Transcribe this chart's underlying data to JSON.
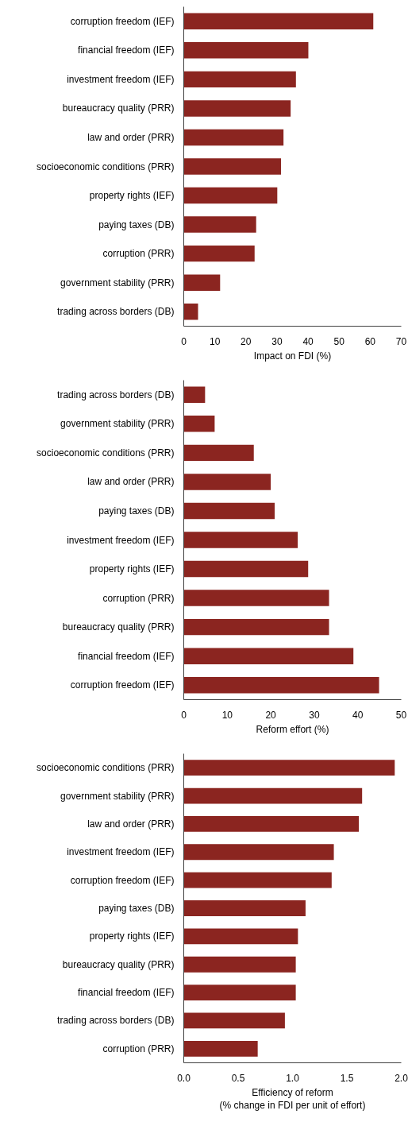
{
  "chart_data": [
    {
      "type": "bar",
      "orientation": "horizontal",
      "xlabel": "Impact on FDI (%)",
      "categories": [
        "corruption freedom (IEF)",
        "financial freedom (IEF)",
        "investment freedom (IEF)",
        "bureaucracy quality (PRR)",
        "law and order (PRR)",
        "socioeconomic conditions (PRR)",
        "property rights (IEF)",
        "paying taxes (DB)",
        "corruption (PRR)",
        "government stability (PRR)",
        "trading across borders (DB)"
      ],
      "values": [
        61.0,
        40.1,
        36.1,
        34.4,
        32.1,
        31.3,
        30.1,
        23.3,
        22.8,
        11.7,
        4.6
      ],
      "color": "#8b2520",
      "xlim": [
        0,
        70
      ],
      "xticks": [
        0,
        10,
        20,
        30,
        40,
        50,
        60,
        70
      ],
      "grid": false
    },
    {
      "type": "bar",
      "orientation": "horizontal",
      "xlabel": "Reform effort (%)",
      "categories": [
        "trading across borders (DB)",
        "government stability (PRR)",
        "socioeconomic conditions (PRR)",
        "law and order (PRR)",
        "paying taxes (DB)",
        "investment freedom (IEF)",
        "property rights (IEF)",
        "corruption (PRR)",
        "bureaucracy quality (PRR)",
        "financial freedom (IEF)",
        "corruption freedom (IEF)"
      ],
      "values": [
        4.9,
        7.1,
        16.1,
        20.0,
        20.9,
        26.2,
        28.6,
        33.4,
        33.4,
        39.0,
        44.9
      ],
      "color": "#8b2520",
      "xlim": [
        0,
        50
      ],
      "xticks": [
        0,
        10,
        20,
        30,
        40,
        50
      ],
      "grid": false
    },
    {
      "type": "bar",
      "orientation": "horizontal",
      "xlabel": "Efficiency of reform\n(% change in FDI per unit of effort)",
      "categories": [
        "socioeconomic conditions (PRR)",
        "government stability (PRR)",
        "law and order (PRR)",
        "investment freedom (IEF)",
        "corruption freedom (IEF)",
        "paying taxes (DB)",
        "property rights (IEF)",
        "bureaucracy quality (PRR)",
        "financial freedom (IEF)",
        "trading across borders (DB)",
        "corruption (PRR)"
      ],
      "values": [
        1.94,
        1.64,
        1.61,
        1.38,
        1.36,
        1.12,
        1.05,
        1.03,
        1.03,
        0.93,
        0.68
      ],
      "color": "#8b2520",
      "xlim": [
        0,
        2
      ],
      "xticks": [
        {
          "value": 0,
          "label": "0.0"
        },
        {
          "value": 0.5,
          "label": "0.5"
        },
        {
          "value": 1,
          "label": "1.0"
        },
        {
          "value": 1.5,
          "label": "1.5"
        },
        {
          "value": 2,
          "label": "2.0"
        }
      ],
      "grid": false
    }
  ]
}
